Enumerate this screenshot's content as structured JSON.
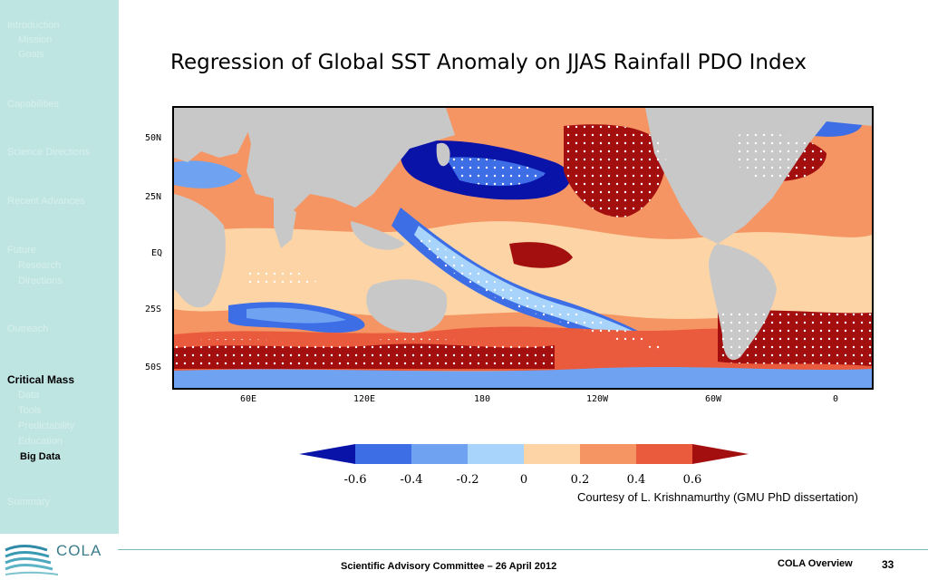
{
  "sidebar": {
    "items": [
      {
        "label": "Introduction",
        "style": "faded"
      },
      {
        "label": "Mission",
        "style": "faded-sub"
      },
      {
        "label": "Goals",
        "style": "faded-sub"
      },
      {
        "label": "Capabilities",
        "style": "faded"
      },
      {
        "label": "Science Directions",
        "style": "faded"
      },
      {
        "label": "Recent Advances",
        "style": "faded"
      },
      {
        "label": "Future",
        "style": "faded"
      },
      {
        "label": "Research",
        "style": "faded-sub"
      },
      {
        "label": "Directions",
        "style": "faded-sub"
      },
      {
        "label": "Outreach",
        "style": "faded"
      },
      {
        "label": "Critical Mass",
        "style": "active"
      },
      {
        "label": "Data",
        "style": "faded-sub"
      },
      {
        "label": "Tools",
        "style": "faded-sub"
      },
      {
        "label": "Predictability",
        "style": "faded-sub"
      },
      {
        "label": "Education",
        "style": "faded-sub"
      },
      {
        "label": "Big Data",
        "style": "active-sub"
      },
      {
        "label": "Summary",
        "style": "faded"
      }
    ]
  },
  "slide": {
    "title": "Regression of Global SST Anomaly on JJAS Rainfall PDO Index",
    "courtesy": "Courtesy of L. Krishnamurthy (GMU PhD dissertation)"
  },
  "map": {
    "lat_labels": [
      "50N",
      "25N",
      "EQ",
      "25S",
      "50S"
    ],
    "lon_labels": [
      "60E",
      "120E",
      "180",
      "120W",
      "60W",
      "0"
    ],
    "land_color": "#c8c8c8"
  },
  "colorbar": {
    "labels": [
      "-0.6",
      "-0.4",
      "-0.2",
      "0",
      "0.2",
      "0.4",
      "0.6"
    ],
    "colors": [
      "#0a13a8",
      "#3d6ee6",
      "#6fa3f2",
      "#a8d4fb",
      "#fdd4a5",
      "#f59563",
      "#ea5a3c",
      "#a30f0f"
    ]
  },
  "footer": {
    "logo_text": "COLA",
    "center": "Scientific Advisory Committee – 26 April 2012",
    "right": "COLA Overview",
    "page": "33"
  }
}
